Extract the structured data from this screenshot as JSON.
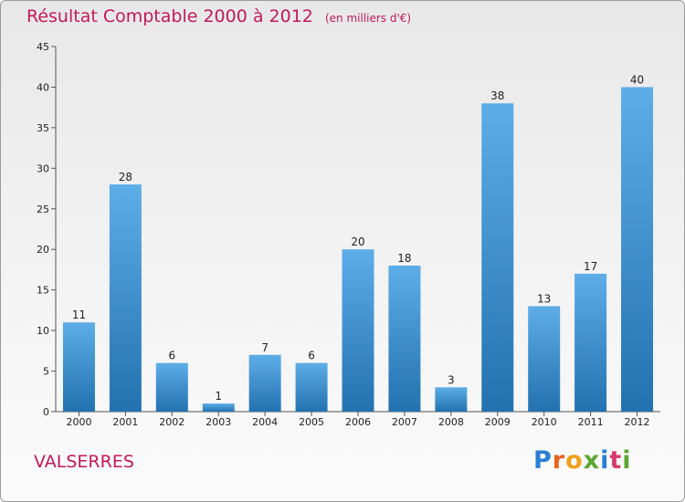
{
  "header": {
    "title": "Résultat Comptable 2000 à 2012",
    "subtitle": "(en milliers d'€)"
  },
  "footer": {
    "place": "VALSERRES",
    "logo": "Proxiti"
  },
  "colors": {
    "title": "#c2185b",
    "bar_top": "#5dade8",
    "bar_bottom": "#2372b0"
  },
  "chart_data": {
    "type": "bar",
    "title": "Résultat Comptable 2000 à 2012",
    "xlabel": "",
    "ylabel": "",
    "categories": [
      "2000",
      "2001",
      "2002",
      "2003",
      "2004",
      "2005",
      "2006",
      "2007",
      "2008",
      "2009",
      "2010",
      "2011",
      "2012"
    ],
    "values": [
      11,
      28,
      6,
      1,
      7,
      6,
      20,
      18,
      3,
      38,
      13,
      17,
      40
    ],
    "ylim": [
      0,
      45
    ],
    "yticks": [
      0,
      5,
      10,
      15,
      20,
      25,
      30,
      35,
      40,
      45
    ],
    "grid": false,
    "data_labels": true
  }
}
